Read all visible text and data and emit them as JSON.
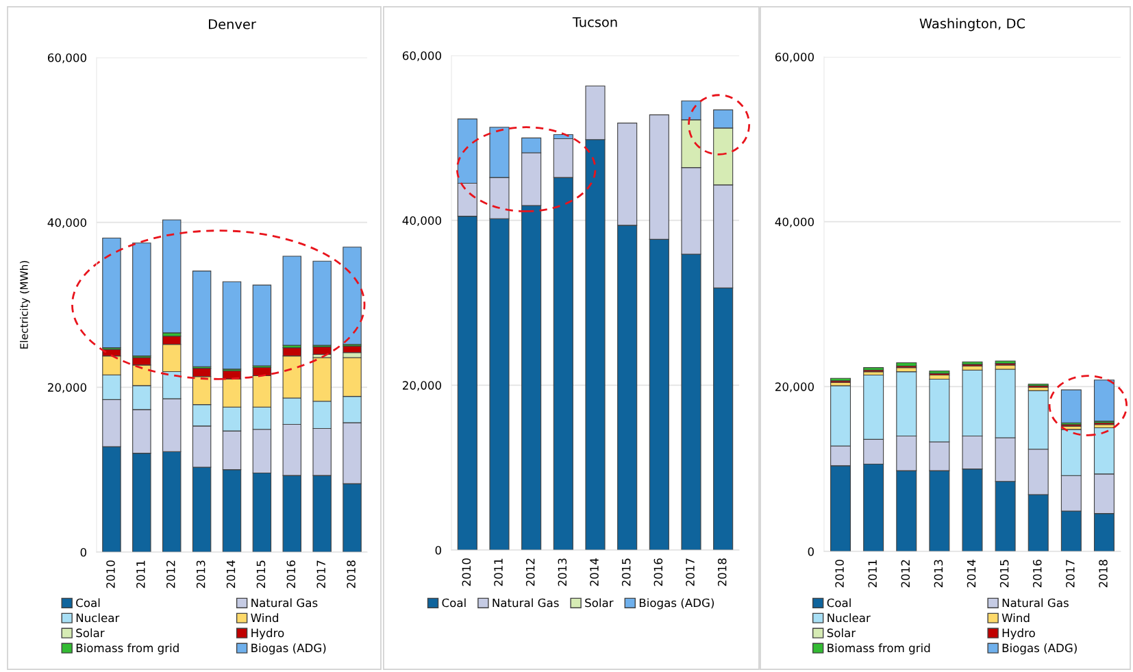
{
  "chart_data": [
    {
      "type": "bar",
      "title": "Denver",
      "ylabel": "Electricity (MWh)",
      "stacked": true,
      "categories": [
        "2010",
        "2011",
        "2012",
        "2013",
        "2014",
        "2015",
        "2016",
        "2017",
        "2018"
      ],
      "ylim": [
        0,
        60000
      ],
      "yticks": [
        0,
        {
          "value": 20000,
          "label": "20,000"
        },
        {
          "value": 40000,
          "label": "40,000"
        },
        {
          "value": 60000,
          "label": "60,000"
        }
      ],
      "grid": "y",
      "legend": "bottom",
      "series": [
        {
          "name": "Coal",
          "color": "#0f649c",
          "values": [
            12800,
            12000,
            12200,
            10300,
            10000,
            9600,
            9300,
            9300,
            8300
          ]
        },
        {
          "name": "Natural Gas",
          "color": "#c5cbe4",
          "values": [
            5700,
            5300,
            6400,
            5000,
            4700,
            5300,
            6200,
            5700,
            7400
          ]
        },
        {
          "name": "Nuclear",
          "color": "#a8dff5",
          "values": [
            3000,
            2900,
            3300,
            2600,
            2900,
            2700,
            3200,
            3300,
            3200
          ]
        },
        {
          "name": "Wind",
          "color": "#fdd96a",
          "values": [
            2300,
            2500,
            3300,
            3400,
            3400,
            3800,
            5100,
            5300,
            4700
          ]
        },
        {
          "name": "Solar",
          "color": "#d6ebb4",
          "values": [
            null,
            null,
            null,
            null,
            null,
            null,
            null,
            400,
            600
          ]
        },
        {
          "name": "Hydro",
          "color": "#c00000",
          "values": [
            800,
            900,
            1000,
            1000,
            1000,
            1000,
            1000,
            900,
            800
          ]
        },
        {
          "name": "Biomass from grid",
          "color": "#33bb33",
          "values": [
            200,
            200,
            400,
            200,
            200,
            200,
            300,
            200,
            200
          ]
        },
        {
          "name": "Biogas (ADG)",
          "color": "#6fb0ec",
          "values": [
            13300,
            13700,
            13700,
            11600,
            10600,
            9800,
            10800,
            10200,
            11800
          ]
        }
      ]
    },
    {
      "type": "bar",
      "title": "Tucson",
      "stacked": true,
      "categories": [
        "2010",
        "2011",
        "2012",
        "2013",
        "2014",
        "2015",
        "2016",
        "2017",
        "2018"
      ],
      "ylim": [
        0,
        60000
      ],
      "yticks": [
        0,
        {
          "value": 20000,
          "label": "20,000"
        },
        {
          "value": 40000,
          "label": "40,000"
        },
        {
          "value": 60000,
          "label": "60,000"
        }
      ],
      "grid": "y",
      "legend": "bottom",
      "series": [
        {
          "name": "Coal",
          "color": "#0f649c",
          "values": [
            40500,
            40200,
            41800,
            45200,
            49800,
            39400,
            37700,
            35900,
            31800
          ]
        },
        {
          "name": "Natural Gas",
          "color": "#c5cbe4",
          "values": [
            4000,
            5000,
            6400,
            4700,
            6500,
            12400,
            15100,
            10500,
            12500
          ]
        },
        {
          "name": "Solar",
          "color": "#d6ebb4",
          "values": [
            null,
            null,
            null,
            null,
            null,
            null,
            null,
            5800,
            6900
          ]
        },
        {
          "name": "Biogas (ADG)",
          "color": "#6fb0ec",
          "values": [
            7800,
            6100,
            1800,
            500,
            null,
            null,
            null,
            2300,
            2200
          ]
        }
      ]
    },
    {
      "type": "bar",
      "title": "Washington, DC",
      "stacked": true,
      "categories": [
        "2010",
        "2011",
        "2012",
        "2013",
        "2014",
        "2015",
        "2016",
        "2017",
        "2018"
      ],
      "ylim": [
        0,
        60000
      ],
      "yticks": [
        0,
        {
          "value": 20000,
          "label": "20,000"
        },
        {
          "value": 40000,
          "label": "40,000"
        },
        {
          "value": 60000,
          "label": "60,000"
        }
      ],
      "grid": "y",
      "legend": "bottom",
      "series": [
        {
          "name": "Coal",
          "color": "#0f649c",
          "values": [
            10400,
            10600,
            9800,
            9800,
            10000,
            8500,
            6900,
            4900,
            4600
          ]
        },
        {
          "name": "Natural Gas",
          "color": "#c5cbe4",
          "values": [
            2400,
            3000,
            4200,
            3500,
            4000,
            5300,
            5500,
            4300,
            4800
          ]
        },
        {
          "name": "Nuclear",
          "color": "#a8dff5",
          "values": [
            7300,
            7800,
            7800,
            7600,
            8000,
            8300,
            7100,
            5600,
            5600
          ]
        },
        {
          "name": "Wind",
          "color": "#fdd96a",
          "values": [
            400,
            400,
            500,
            500,
            500,
            500,
            400,
            400,
            400
          ]
        },
        {
          "name": "Solar",
          "color": "#d6ebb4",
          "values": [
            null,
            null,
            null,
            null,
            null,
            null,
            null,
            null,
            null
          ]
        },
        {
          "name": "Hydro",
          "color": "#c00000",
          "values": [
            200,
            200,
            200,
            200,
            200,
            200,
            200,
            200,
            200
          ]
        },
        {
          "name": "Biomass from grid",
          "color": "#33bb33",
          "values": [
            300,
            300,
            400,
            300,
            300,
            300,
            200,
            200,
            200
          ]
        },
        {
          "name": "Biogas (ADG)",
          "color": "#6fb0ec",
          "values": [
            null,
            null,
            null,
            null,
            null,
            null,
            null,
            4000,
            5000
          ]
        }
      ]
    }
  ]
}
